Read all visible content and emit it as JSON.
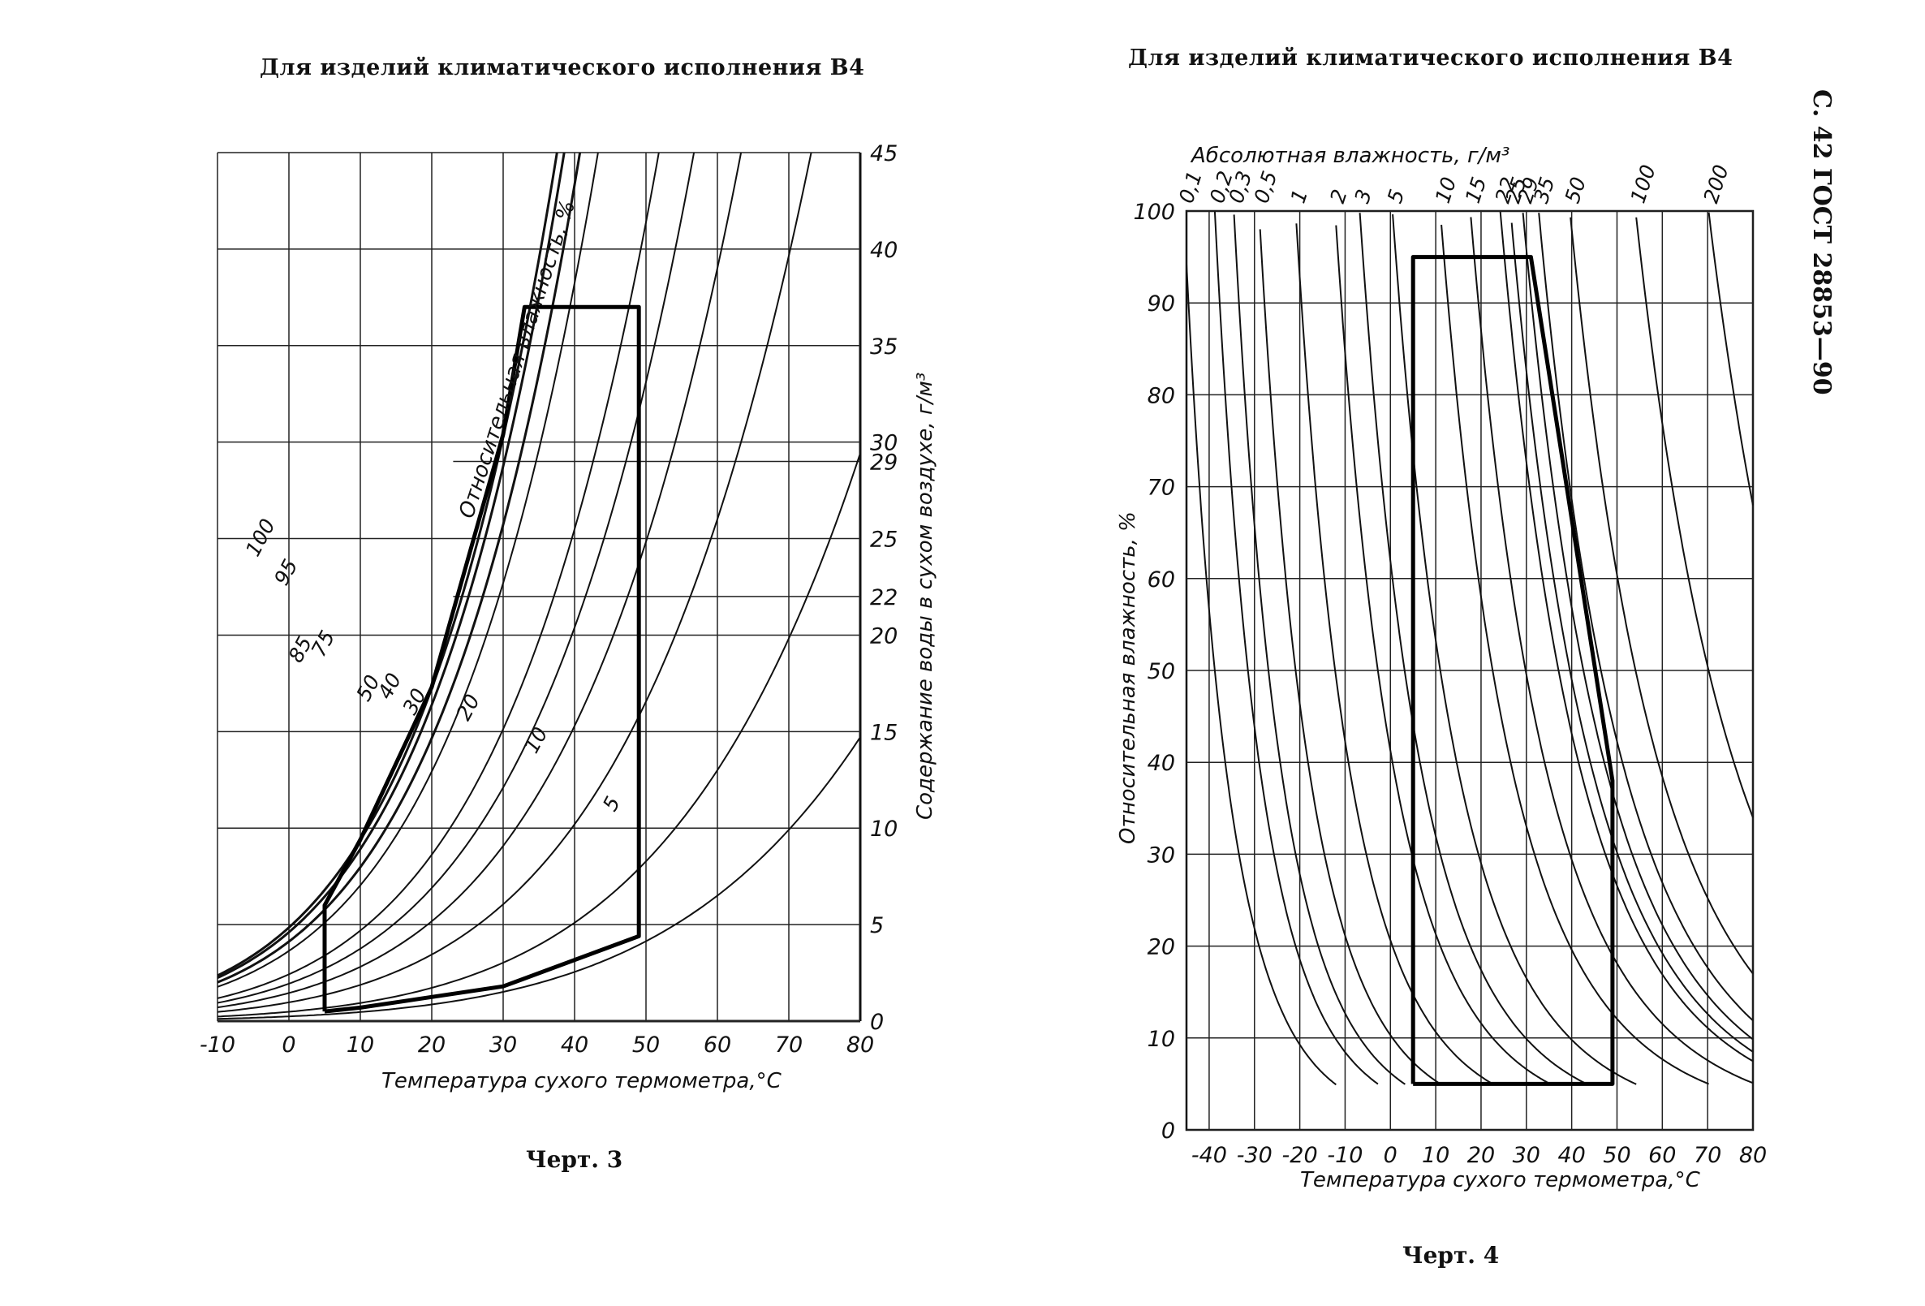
{
  "page": {
    "header": "С. 42 ГОСТ 28853—90"
  },
  "chart_data": [
    {
      "type": "line",
      "title": "Для изделий климатического исполнения В4",
      "caption": "Черт. 3",
      "xlabel": "Температура сухого термометра,°С",
      "ylabel": "Содержание воды в сухом воздухе, г/м³",
      "curve_family_label": "Относительная влажность, %",
      "xlim": [
        -10,
        80
      ],
      "ylim": [
        0,
        45
      ],
      "x_ticks": [
        "-10",
        "0",
        "10",
        "20",
        "30",
        "40",
        "50",
        "60",
        "70",
        "80"
      ],
      "y_ticks": [
        "0",
        "5",
        "10",
        "15",
        "20",
        "25",
        "30",
        "35",
        "40",
        "45"
      ],
      "extra_y_ticks": [
        "22",
        "29"
      ],
      "series": [
        {
          "name": "100",
          "rh": 100
        },
        {
          "name": "95",
          "rh": 95
        },
        {
          "name": "85",
          "rh": 85
        },
        {
          "name": "75",
          "rh": 75
        },
        {
          "name": "50",
          "rh": 50
        },
        {
          "name": "40",
          "rh": 40
        },
        {
          "name": "30",
          "rh": 30
        },
        {
          "name": "20",
          "rh": 20
        },
        {
          "name": "10",
          "rh": 10
        },
        {
          "name": "5",
          "rh": 5
        }
      ],
      "region": {
        "description": "operating area",
        "points": [
          [
            5,
            0.5
          ],
          [
            5,
            6
          ],
          [
            10,
            9.4
          ],
          [
            20,
            17.3
          ],
          [
            30,
            30.4
          ],
          [
            33,
            37
          ],
          [
            49,
            37
          ],
          [
            49,
            4.4
          ],
          [
            30,
            1.8
          ],
          [
            10,
            0.7
          ],
          [
            5,
            0.5
          ]
        ]
      }
    },
    {
      "type": "line",
      "title": "Для изделий климатического исполнения В4",
      "caption": "Черт. 4",
      "xlabel": "Температура сухого термометра,°С",
      "ylabel": "Относительная влажность, %",
      "top_axis_label": "Абсолютная влажность, г/м³",
      "xlim": [
        -45,
        80
      ],
      "ylim": [
        0,
        100
      ],
      "x_ticks": [
        "-40",
        "-30",
        "-20",
        "-10",
        "0",
        "10",
        "20",
        "30",
        "40",
        "50",
        "60",
        "70",
        "80"
      ],
      "y_ticks": [
        "0",
        "10",
        "20",
        "30",
        "40",
        "50",
        "60",
        "70",
        "80",
        "90",
        "100"
      ],
      "series": [
        {
          "name": "0,1",
          "abs": 0.1
        },
        {
          "name": "0,2",
          "abs": 0.2
        },
        {
          "name": "0,3",
          "abs": 0.3
        },
        {
          "name": "0,5",
          "abs": 0.5
        },
        {
          "name": "1",
          "abs": 1
        },
        {
          "name": "2",
          "abs": 2
        },
        {
          "name": "3",
          "abs": 3
        },
        {
          "name": "5",
          "abs": 5
        },
        {
          "name": "10",
          "abs": 10
        },
        {
          "name": "15",
          "abs": 15
        },
        {
          "name": "22",
          "abs": 22
        },
        {
          "name": "25",
          "abs": 25
        },
        {
          "name": "29",
          "abs": 29
        },
        {
          "name": "35",
          "abs": 35
        },
        {
          "name": "50",
          "abs": 50
        },
        {
          "name": "100",
          "abs": 100
        },
        {
          "name": "200",
          "abs": 200
        }
      ],
      "region": {
        "description": "operating area",
        "points": [
          [
            5,
            5
          ],
          [
            5,
            95
          ],
          [
            31,
            95
          ],
          [
            49,
            38
          ],
          [
            49,
            5
          ],
          [
            5,
            5
          ]
        ]
      }
    }
  ]
}
